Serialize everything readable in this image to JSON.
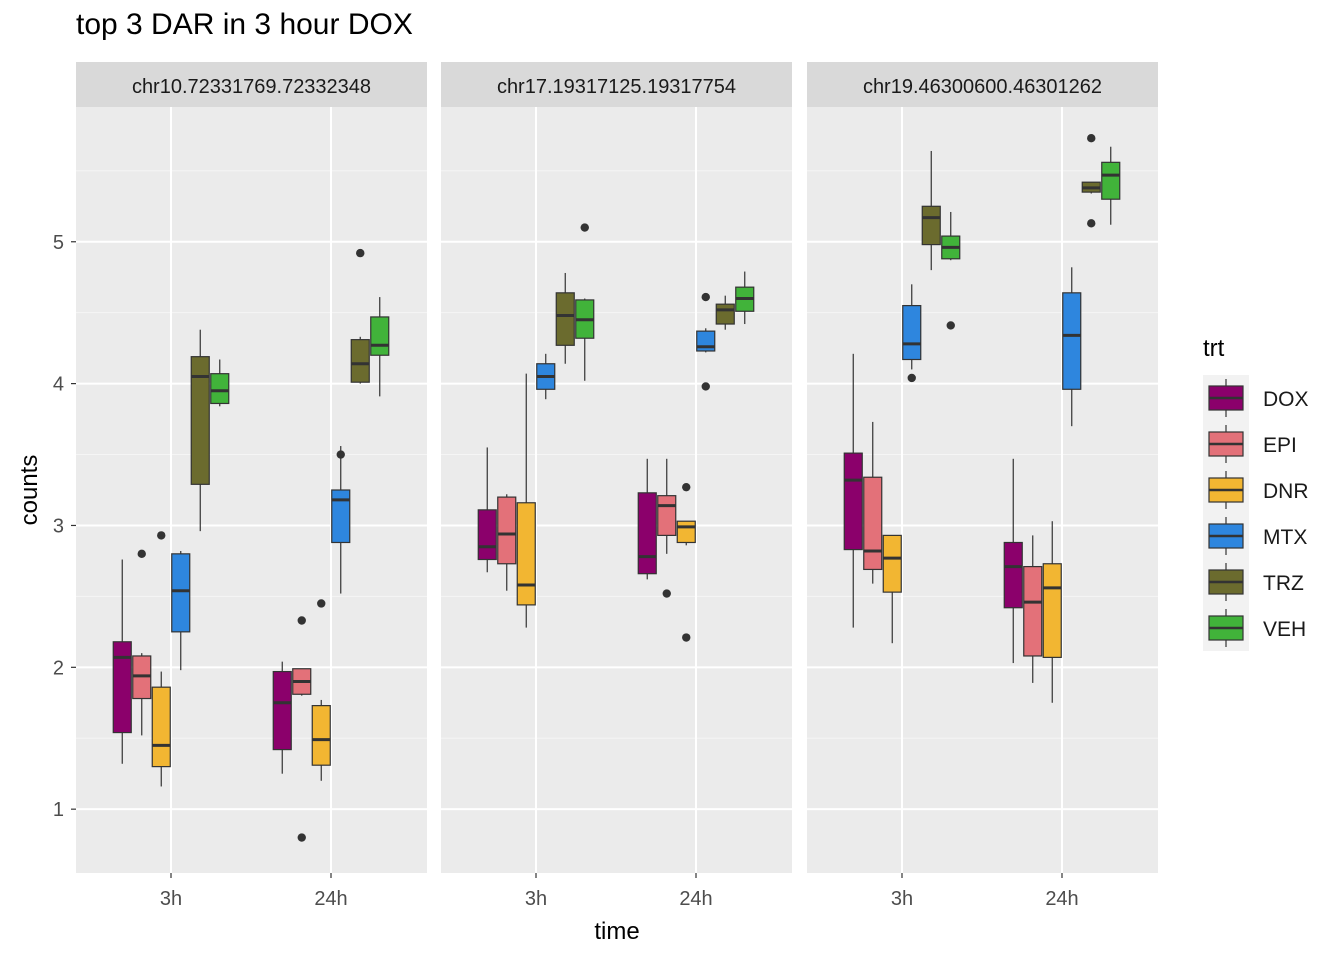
{
  "chart_data": {
    "type": "box",
    "title": "top 3 DAR in 3 hour DOX",
    "xlabel": "time",
    "ylabel": "counts",
    "y_ticks": [
      1,
      2,
      3,
      4,
      5
    ],
    "ylim": [
      0.55,
      5.95
    ],
    "x_categories": [
      "3h",
      "24h"
    ],
    "legend": {
      "title": "trt",
      "position": "right",
      "items": [
        {
          "name": "DOX",
          "color": "#8B006B"
        },
        {
          "name": "EPI",
          "color": "#E37179"
        },
        {
          "name": "DNR",
          "color": "#F2B632"
        },
        {
          "name": "MTX",
          "color": "#2E86DE"
        },
        {
          "name": "TRZ",
          "color": "#6B6B2E"
        },
        {
          "name": "VEH",
          "color": "#41B33A"
        }
      ]
    },
    "panels": [
      {
        "label": "chr10.72331769.72332348",
        "groups": [
          {
            "time": "3h",
            "boxes": [
              {
                "trt": "DOX",
                "min": 1.32,
                "q1": 1.54,
                "median": 2.07,
                "q3": 2.18,
                "max": 2.76,
                "outliers": []
              },
              {
                "trt": "EPI",
                "min": 1.52,
                "q1": 1.78,
                "median": 1.94,
                "q3": 2.08,
                "max": 2.1,
                "outliers": [
                  2.8
                ]
              },
              {
                "trt": "DNR",
                "min": 1.16,
                "q1": 1.3,
                "median": 1.45,
                "q3": 1.86,
                "max": 1.97,
                "outliers": [
                  2.93
                ]
              },
              {
                "trt": "MTX",
                "min": 1.98,
                "q1": 2.25,
                "median": 2.54,
                "q3": 2.8,
                "max": 2.82,
                "outliers": []
              },
              {
                "trt": "TRZ",
                "min": 2.96,
                "q1": 3.29,
                "median": 4.05,
                "q3": 4.19,
                "max": 4.38,
                "outliers": []
              },
              {
                "trt": "VEH",
                "min": 3.84,
                "q1": 3.86,
                "median": 3.95,
                "q3": 4.07,
                "max": 4.17,
                "outliers": []
              }
            ]
          },
          {
            "time": "24h",
            "boxes": [
              {
                "trt": "DOX",
                "min": 1.25,
                "q1": 1.42,
                "median": 1.75,
                "q3": 1.97,
                "max": 2.04,
                "outliers": []
              },
              {
                "trt": "EPI",
                "min": 1.8,
                "q1": 1.81,
                "median": 1.9,
                "q3": 1.99,
                "max": 1.99,
                "outliers": [
                  2.33,
                  0.8
                ]
              },
              {
                "trt": "DNR",
                "min": 1.2,
                "q1": 1.31,
                "median": 1.49,
                "q3": 1.73,
                "max": 1.77,
                "outliers": [
                  2.45
                ]
              },
              {
                "trt": "MTX",
                "min": 2.52,
                "q1": 2.88,
                "median": 3.18,
                "q3": 3.25,
                "max": 3.56,
                "outliers": [
                  3.5
                ]
              },
              {
                "trt": "TRZ",
                "min": 4.0,
                "q1": 4.01,
                "median": 4.14,
                "q3": 4.31,
                "max": 4.33,
                "outliers": [
                  4.92
                ]
              },
              {
                "trt": "VEH",
                "min": 3.91,
                "q1": 4.2,
                "median": 4.27,
                "q3": 4.47,
                "max": 4.61,
                "outliers": []
              }
            ]
          }
        ]
      },
      {
        "label": "chr17.19317125.19317754",
        "groups": [
          {
            "time": "3h",
            "boxes": [
              {
                "trt": "DOX",
                "min": 2.67,
                "q1": 2.76,
                "median": 2.85,
                "q3": 3.11,
                "max": 3.55,
                "outliers": []
              },
              {
                "trt": "EPI",
                "min": 2.54,
                "q1": 2.73,
                "median": 2.94,
                "q3": 3.2,
                "max": 3.22,
                "outliers": []
              },
              {
                "trt": "DNR",
                "min": 2.28,
                "q1": 2.44,
                "median": 2.58,
                "q3": 3.16,
                "max": 4.07,
                "outliers": []
              },
              {
                "trt": "MTX",
                "min": 3.89,
                "q1": 3.96,
                "median": 4.05,
                "q3": 4.14,
                "max": 4.21,
                "outliers": []
              },
              {
                "trt": "TRZ",
                "min": 4.14,
                "q1": 4.27,
                "median": 4.48,
                "q3": 4.64,
                "max": 4.78,
                "outliers": []
              },
              {
                "trt": "VEH",
                "min": 4.02,
                "q1": 4.32,
                "median": 4.45,
                "q3": 4.59,
                "max": 4.6,
                "outliers": [
                  5.1
                ]
              }
            ]
          },
          {
            "time": "24h",
            "boxes": [
              {
                "trt": "DOX",
                "min": 2.62,
                "q1": 2.66,
                "median": 2.78,
                "q3": 3.23,
                "max": 3.47,
                "outliers": []
              },
              {
                "trt": "EPI",
                "min": 2.8,
                "q1": 2.93,
                "median": 3.14,
                "q3": 3.21,
                "max": 3.47,
                "outliers": [
                  2.52
                ]
              },
              {
                "trt": "DNR",
                "min": 2.86,
                "q1": 2.88,
                "median": 2.99,
                "q3": 3.03,
                "max": 3.03,
                "outliers": [
                  3.27,
                  2.21
                ]
              },
              {
                "trt": "MTX",
                "min": 4.22,
                "q1": 4.23,
                "median": 4.26,
                "q3": 4.37,
                "max": 4.39,
                "outliers": [
                  4.61,
                  3.98
                ]
              },
              {
                "trt": "TRZ",
                "min": 4.38,
                "q1": 4.42,
                "median": 4.52,
                "q3": 4.56,
                "max": 4.62,
                "outliers": []
              },
              {
                "trt": "VEH",
                "min": 4.42,
                "q1": 4.51,
                "median": 4.6,
                "q3": 4.68,
                "max": 4.79,
                "outliers": []
              }
            ]
          }
        ]
      },
      {
        "label": "chr19.46300600.46301262",
        "groups": [
          {
            "time": "3h",
            "boxes": [
              {
                "trt": "DOX",
                "min": 2.28,
                "q1": 2.83,
                "median": 3.32,
                "q3": 3.51,
                "max": 4.21,
                "outliers": []
              },
              {
                "trt": "EPI",
                "min": 2.59,
                "q1": 2.69,
                "median": 2.82,
                "q3": 3.34,
                "max": 3.73,
                "outliers": []
              },
              {
                "trt": "DNR",
                "min": 2.17,
                "q1": 2.53,
                "median": 2.77,
                "q3": 2.93,
                "max": 2.93,
                "outliers": []
              },
              {
                "trt": "MTX",
                "min": 4.1,
                "q1": 4.17,
                "median": 4.28,
                "q3": 4.55,
                "max": 4.7,
                "outliers": [
                  4.04
                ]
              },
              {
                "trt": "TRZ",
                "min": 4.8,
                "q1": 4.98,
                "median": 5.17,
                "q3": 5.25,
                "max": 5.64,
                "outliers": []
              },
              {
                "trt": "VEH",
                "min": 4.87,
                "q1": 4.88,
                "median": 4.96,
                "q3": 5.04,
                "max": 5.21,
                "outliers": [
                  4.41
                ]
              }
            ]
          },
          {
            "time": "24h",
            "boxes": [
              {
                "trt": "DOX",
                "min": 2.03,
                "q1": 2.42,
                "median": 2.71,
                "q3": 2.88,
                "max": 3.47,
                "outliers": []
              },
              {
                "trt": "EPI",
                "min": 1.89,
                "q1": 2.08,
                "median": 2.46,
                "q3": 2.71,
                "max": 2.93,
                "outliers": []
              },
              {
                "trt": "DNR",
                "min": 1.75,
                "q1": 2.07,
                "median": 2.56,
                "q3": 2.73,
                "max": 3.03,
                "outliers": []
              },
              {
                "trt": "MTX",
                "min": 3.7,
                "q1": 3.96,
                "median": 4.34,
                "q3": 4.64,
                "max": 4.82,
                "outliers": []
              },
              {
                "trt": "TRZ",
                "min": 5.34,
                "q1": 5.35,
                "median": 5.38,
                "q3": 5.42,
                "max": 5.42,
                "outliers": [
                  5.73,
                  5.13
                ]
              },
              {
                "trt": "VEH",
                "min": 5.12,
                "q1": 5.3,
                "median": 5.47,
                "q3": 5.56,
                "max": 5.67,
                "outliers": []
              }
            ]
          }
        ]
      }
    ]
  }
}
